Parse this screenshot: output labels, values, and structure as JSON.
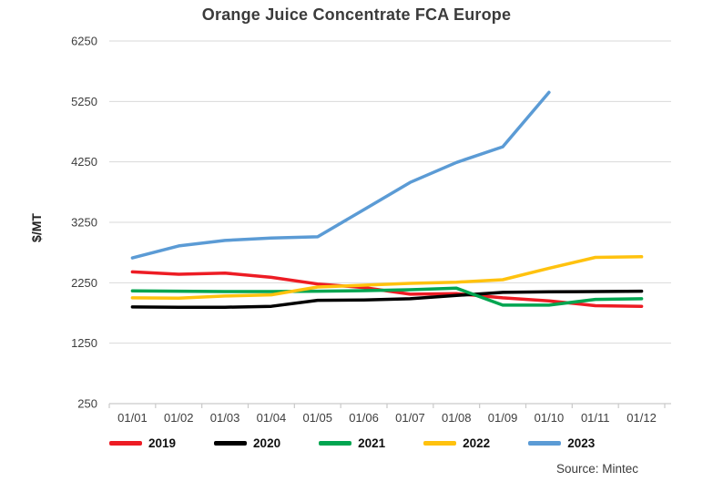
{
  "chart": {
    "title": "Orange Juice Concentrate FCA Europe",
    "y_axis_label": "$/MT",
    "source": "Source: Mintec"
  },
  "chart_data": {
    "type": "line",
    "title": "Orange Juice Concentrate FCA Europe",
    "xlabel": "",
    "ylabel": "$/MT",
    "categories": [
      "01/01",
      "01/02",
      "01/03",
      "01/04",
      "01/05",
      "01/06",
      "01/07",
      "01/08",
      "01/09",
      "01/10",
      "01/11",
      "01/12"
    ],
    "series": [
      {
        "name": "2019",
        "color": "#ED1C24",
        "values": [
          2430,
          2390,
          2410,
          2340,
          2230,
          2170,
          2060,
          2070,
          2000,
          1950,
          1870,
          1860
        ]
      },
      {
        "name": "2020",
        "color": "#000000",
        "values": [
          1850,
          1845,
          1845,
          1860,
          1960,
          1965,
          1985,
          2040,
          2090,
          2100,
          2105,
          2110
        ]
      },
      {
        "name": "2021",
        "color": "#00A550",
        "values": [
          2115,
          2110,
          2105,
          2105,
          2110,
          2120,
          2135,
          2160,
          1880,
          1880,
          1975,
          1985
        ]
      },
      {
        "name": "2022",
        "color": "#FFC20E",
        "values": [
          2000,
          1995,
          2030,
          2050,
          2180,
          2210,
          2240,
          2260,
          2300,
          2490,
          2670,
          2680
        ]
      },
      {
        "name": "2023",
        "color": "#5B9BD5",
        "values": [
          2660,
          2860,
          2950,
          2990,
          3010,
          3460,
          3910,
          4240,
          4500,
          5400,
          null,
          null
        ]
      }
    ],
    "ylim": [
      250,
      6250
    ],
    "yticks": [
      250,
      1250,
      2250,
      3250,
      4250,
      5250,
      6250
    ],
    "grid": "horizontal",
    "legend_position": "bottom",
    "source": "Source: Mintec",
    "style": {
      "gridline_color": "#d9d9d9",
      "axis_color": "#c9c9c9",
      "tick_text_color": "#3d3d3d",
      "line_width": 3.5
    }
  }
}
